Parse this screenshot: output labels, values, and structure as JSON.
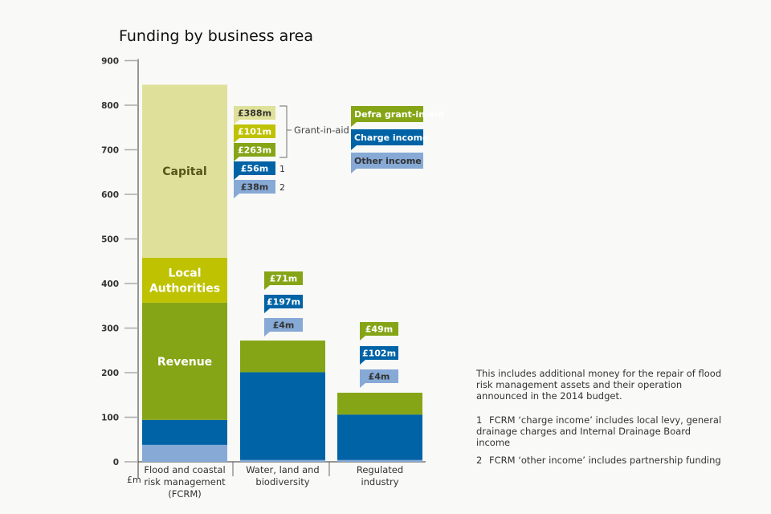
{
  "chart_data": {
    "type": "bar",
    "stacked": true,
    "title": "Funding by business area",
    "ylabel": "£m",
    "ylim": [
      0,
      900
    ],
    "yticks": [
      0,
      100,
      200,
      300,
      400,
      500,
      600,
      700,
      800,
      900
    ],
    "grid": false,
    "categories": [
      "Flood and coastal risk management (FCRM)",
      "Water, land and biodiversity",
      "Regulated industry"
    ],
    "category_lines": [
      [
        "Flood and coastal",
        "risk management",
        "(FCRM)"
      ],
      [
        "Water, land and",
        "biodiversity"
      ],
      [
        "Regulated",
        "industry"
      ]
    ],
    "series": [
      {
        "name": "Other income",
        "color": "#86a9d6",
        "values": [
          38,
          4,
          4
        ]
      },
      {
        "name": "Charge income",
        "color": "#0063a6",
        "values": [
          56,
          197,
          102
        ]
      },
      {
        "name": "Defra grant-in-aid (Revenue)",
        "color": "#86a516",
        "values": [
          263,
          71,
          49
        ]
      },
      {
        "name": "Local Authorities",
        "color": "#bfc200",
        "values": [
          101,
          0,
          0
        ]
      },
      {
        "name": "Capital",
        "color": "#dfe09a",
        "values": [
          388,
          0,
          0
        ]
      }
    ],
    "segment_labels": [
      {
        "series": 4,
        "lines": [
          "Capital"
        ],
        "color": "#55561a"
      },
      {
        "series": 3,
        "lines": [
          "Local",
          "Authorities"
        ],
        "color": "#ffffff"
      },
      {
        "series": 2,
        "lines": [
          "Revenue"
        ],
        "color": "#ffffff"
      }
    ],
    "callouts": [
      [
        {
          "text": "£388m",
          "color": "#dfe09a",
          "textColor": "#333333"
        },
        {
          "text": "£101m",
          "color": "#bfc200",
          "textColor": "#ffffff"
        },
        {
          "text": "£263m",
          "color": "#86a516",
          "textColor": "#ffffff"
        },
        {
          "text": "£56m",
          "color": "#0063a6",
          "textColor": "#ffffff",
          "note": "1"
        },
        {
          "text": "£38m",
          "color": "#86a9d6",
          "textColor": "#333333",
          "note": "2"
        }
      ],
      [
        {
          "text": "£71m",
          "color": "#86a516",
          "textColor": "#ffffff"
        },
        {
          "text": "£197m",
          "color": "#0063a6",
          "textColor": "#ffffff"
        },
        {
          "text": "£4m",
          "color": "#86a9d6",
          "textColor": "#333333"
        }
      ],
      [
        {
          "text": "£49m",
          "color": "#86a516",
          "textColor": "#ffffff"
        },
        {
          "text": "£102m",
          "color": "#0063a6",
          "textColor": "#ffffff"
        },
        {
          "text": "£4m",
          "color": "#86a9d6",
          "textColor": "#333333"
        }
      ]
    ],
    "bracket_label": "Grant-in-aid",
    "legend": {
      "placement": "top-right",
      "items": [
        {
          "label": "Defra grant-in-aid",
          "color": "#86a516",
          "textColor": "#ffffff"
        },
        {
          "label": "Charge income",
          "color": "#0063a6",
          "textColor": "#ffffff"
        },
        {
          "label": "Other income",
          "color": "#86a9d6",
          "textColor": "#333333"
        }
      ]
    }
  },
  "notes": {
    "intro": "This includes additional money for the repair of flood risk management assets and their operation announced in the 2014 budget.",
    "items": [
      {
        "num": "1",
        "text": "FCRM ‘charge income’ includes local levy, general drainage charges and Internal Drainage Board income"
      },
      {
        "num": "2",
        "text": "FCRM ‘other income’ includes partnership funding"
      }
    ]
  }
}
